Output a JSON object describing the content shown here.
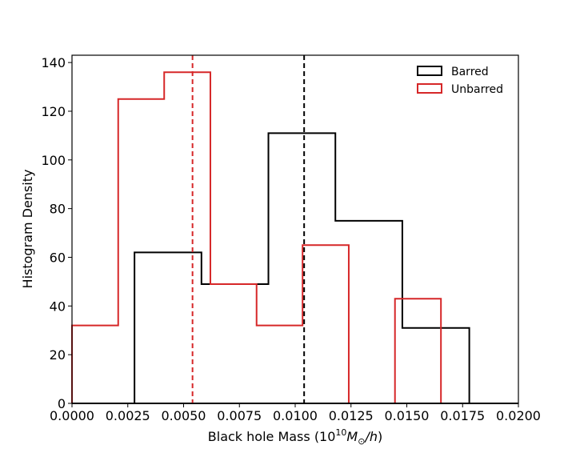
{
  "chart_data": {
    "type": "histogram",
    "title": "",
    "xlabel_prefix": "Black hole Mass (10",
    "xlabel_exponent": "10",
    "xlabel_unit_M": "M",
    "xlabel_unit_sub": "⊙",
    "xlabel_suffix_h": "/h",
    "xlabel_close": ")",
    "ylabel": "Histogram Density",
    "xlim": [
      0,
      0.02
    ],
    "ylim": [
      0,
      143
    ],
    "x_ticks": [
      0,
      0.0025,
      0.005,
      0.0075,
      0.01,
      0.0125,
      0.015,
      0.0175,
      0.02
    ],
    "x_tick_labels": [
      "0.0000",
      "0.0025",
      "0.0050",
      "0.0075",
      "0.0100",
      "0.0125",
      "0.0150",
      "0.0175",
      "0.0200"
    ],
    "y_ticks": [
      0,
      20,
      40,
      60,
      80,
      100,
      120,
      140
    ],
    "y_tick_labels": [
      "0",
      "20",
      "40",
      "60",
      "80",
      "100",
      "120",
      "140"
    ],
    "legend_position": "top-right",
    "series": [
      {
        "name": "Barred",
        "color": "#000000",
        "bin_edges": [
          0.0028,
          0.0058,
          0.0088,
          0.0118,
          0.0148,
          0.0178
        ],
        "values": [
          62,
          49,
          111,
          75,
          31
        ],
        "mean_line": 0.0104
      },
      {
        "name": "Unbarred",
        "color": "#d62728",
        "bin_edges": [
          0.0,
          0.00207,
          0.00413,
          0.0062,
          0.00827,
          0.01033,
          0.0124,
          0.01447,
          0.01653
        ],
        "values": [
          32,
          125,
          136,
          49,
          32,
          65,
          0,
          43
        ],
        "mean_line": 0.0054
      }
    ]
  }
}
